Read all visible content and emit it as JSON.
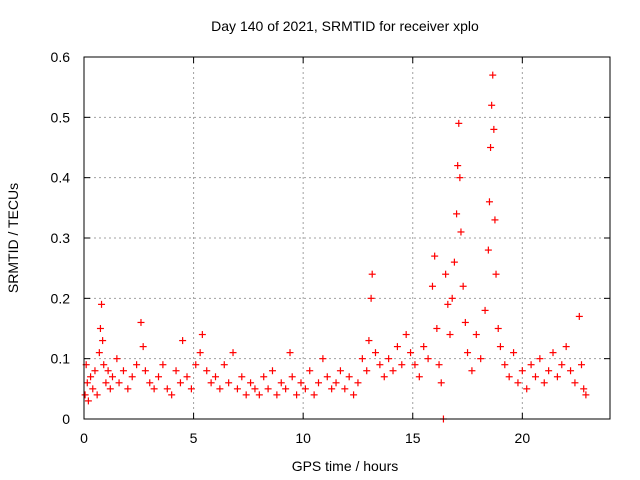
{
  "chart_data": {
    "type": "scatter",
    "title": "Day 140 of 2021, SRMTID for receiver xplo",
    "xlabel": "GPS time / hours",
    "ylabel": "SRMTID / TECUs",
    "xlim": [
      0,
      24
    ],
    "ylim": [
      0,
      0.6
    ],
    "xticks": [
      0,
      5,
      10,
      15,
      20
    ],
    "xtick_labels": [
      "0",
      "5",
      "10",
      "15",
      "20"
    ],
    "yticks": [
      0,
      0.1,
      0.2,
      0.3,
      0.4,
      0.5,
      0.6
    ],
    "ytick_labels": [
      "0",
      "0.1",
      "0.2",
      "0.3",
      "0.4",
      "0.5",
      "0.6"
    ],
    "grid": true,
    "marker": "plus",
    "color": "#ff0000",
    "series": [
      {
        "name": "SRMTID",
        "points": [
          [
            0.05,
            0.04
          ],
          [
            0.1,
            0.09
          ],
          [
            0.15,
            0.06
          ],
          [
            0.2,
            0.03
          ],
          [
            0.3,
            0.07
          ],
          [
            0.4,
            0.05
          ],
          [
            0.5,
            0.08
          ],
          [
            0.6,
            0.04
          ],
          [
            0.7,
            0.11
          ],
          [
            0.75,
            0.15
          ],
          [
            0.8,
            0.19
          ],
          [
            0.85,
            0.13
          ],
          [
            0.9,
            0.09
          ],
          [
            1.0,
            0.06
          ],
          [
            1.1,
            0.08
          ],
          [
            1.2,
            0.05
          ],
          [
            1.3,
            0.07
          ],
          [
            1.5,
            0.1
          ],
          [
            1.6,
            0.06
          ],
          [
            1.8,
            0.08
          ],
          [
            2.0,
            0.05
          ],
          [
            2.2,
            0.07
          ],
          [
            2.4,
            0.09
          ],
          [
            2.6,
            0.16
          ],
          [
            2.7,
            0.12
          ],
          [
            2.8,
            0.08
          ],
          [
            3.0,
            0.06
          ],
          [
            3.2,
            0.05
          ],
          [
            3.4,
            0.07
          ],
          [
            3.6,
            0.09
          ],
          [
            3.8,
            0.05
          ],
          [
            4.0,
            0.04
          ],
          [
            4.2,
            0.08
          ],
          [
            4.4,
            0.06
          ],
          [
            4.5,
            0.13
          ],
          [
            4.7,
            0.07
          ],
          [
            4.9,
            0.05
          ],
          [
            5.1,
            0.09
          ],
          [
            5.3,
            0.11
          ],
          [
            5.4,
            0.14
          ],
          [
            5.6,
            0.08
          ],
          [
            5.8,
            0.06
          ],
          [
            6.0,
            0.07
          ],
          [
            6.2,
            0.05
          ],
          [
            6.4,
            0.09
          ],
          [
            6.6,
            0.06
          ],
          [
            6.8,
            0.11
          ],
          [
            7.0,
            0.05
          ],
          [
            7.2,
            0.07
          ],
          [
            7.4,
            0.04
          ],
          [
            7.6,
            0.06
          ],
          [
            7.8,
            0.05
          ],
          [
            8.0,
            0.04
          ],
          [
            8.2,
            0.07
          ],
          [
            8.4,
            0.05
          ],
          [
            8.6,
            0.08
          ],
          [
            8.8,
            0.04
          ],
          [
            9.0,
            0.06
          ],
          [
            9.2,
            0.05
          ],
          [
            9.4,
            0.11
          ],
          [
            9.5,
            0.07
          ],
          [
            9.7,
            0.04
          ],
          [
            9.9,
            0.06
          ],
          [
            10.1,
            0.05
          ],
          [
            10.3,
            0.08
          ],
          [
            10.5,
            0.04
          ],
          [
            10.7,
            0.06
          ],
          [
            10.9,
            0.1
          ],
          [
            11.1,
            0.07
          ],
          [
            11.3,
            0.05
          ],
          [
            11.5,
            0.06
          ],
          [
            11.7,
            0.08
          ],
          [
            11.9,
            0.05
          ],
          [
            12.1,
            0.07
          ],
          [
            12.3,
            0.04
          ],
          [
            12.5,
            0.06
          ],
          [
            12.7,
            0.1
          ],
          [
            12.9,
            0.08
          ],
          [
            13.0,
            0.13
          ],
          [
            13.1,
            0.2
          ],
          [
            13.15,
            0.24
          ],
          [
            13.3,
            0.11
          ],
          [
            13.5,
            0.09
          ],
          [
            13.7,
            0.07
          ],
          [
            13.9,
            0.1
          ],
          [
            14.1,
            0.08
          ],
          [
            14.3,
            0.12
          ],
          [
            14.5,
            0.09
          ],
          [
            14.7,
            0.14
          ],
          [
            14.9,
            0.11
          ],
          [
            15.1,
            0.09
          ],
          [
            15.3,
            0.07
          ],
          [
            15.5,
            0.12
          ],
          [
            15.7,
            0.1
          ],
          [
            15.9,
            0.22
          ],
          [
            16.0,
            0.27
          ],
          [
            16.1,
            0.15
          ],
          [
            16.2,
            0.09
          ],
          [
            16.3,
            0.06
          ],
          [
            16.4,
            0.0
          ],
          [
            16.5,
            0.24
          ],
          [
            16.6,
            0.19
          ],
          [
            16.7,
            0.14
          ],
          [
            16.8,
            0.2
          ],
          [
            16.9,
            0.26
          ],
          [
            17.0,
            0.34
          ],
          [
            17.05,
            0.42
          ],
          [
            17.1,
            0.49
          ],
          [
            17.15,
            0.4
          ],
          [
            17.2,
            0.31
          ],
          [
            17.3,
            0.22
          ],
          [
            17.4,
            0.16
          ],
          [
            17.5,
            0.11
          ],
          [
            17.7,
            0.08
          ],
          [
            17.9,
            0.14
          ],
          [
            18.1,
            0.1
          ],
          [
            18.3,
            0.18
          ],
          [
            18.45,
            0.28
          ],
          [
            18.5,
            0.36
          ],
          [
            18.55,
            0.45
          ],
          [
            18.6,
            0.52
          ],
          [
            18.65,
            0.57
          ],
          [
            18.7,
            0.48
          ],
          [
            18.75,
            0.33
          ],
          [
            18.8,
            0.24
          ],
          [
            18.9,
            0.15
          ],
          [
            19.0,
            0.12
          ],
          [
            19.2,
            0.09
          ],
          [
            19.4,
            0.07
          ],
          [
            19.6,
            0.11
          ],
          [
            19.8,
            0.06
          ],
          [
            20.0,
            0.08
          ],
          [
            20.2,
            0.05
          ],
          [
            20.4,
            0.09
          ],
          [
            20.6,
            0.07
          ],
          [
            20.8,
            0.1
          ],
          [
            21.0,
            0.06
          ],
          [
            21.2,
            0.08
          ],
          [
            21.4,
            0.11
          ],
          [
            21.6,
            0.07
          ],
          [
            21.8,
            0.09
          ],
          [
            22.0,
            0.12
          ],
          [
            22.2,
            0.08
          ],
          [
            22.4,
            0.06
          ],
          [
            22.6,
            0.17
          ],
          [
            22.7,
            0.09
          ],
          [
            22.8,
            0.05
          ],
          [
            22.9,
            0.04
          ]
        ]
      }
    ]
  }
}
